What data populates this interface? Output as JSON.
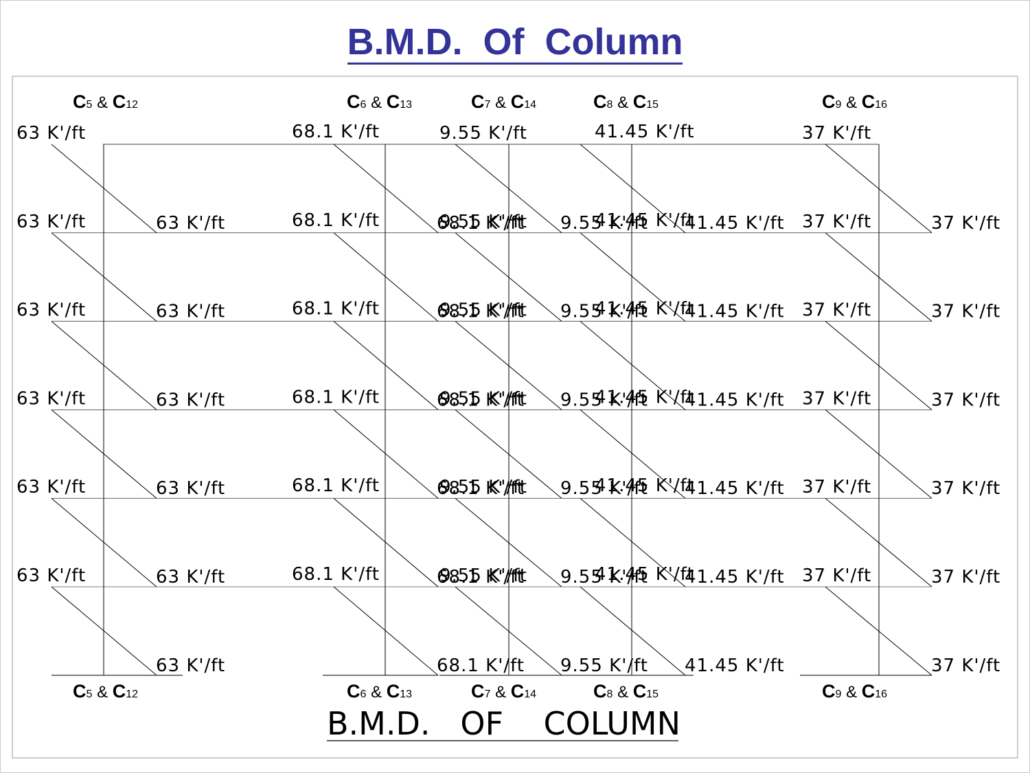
{
  "slide_title": "B.M.D.  Of  Column",
  "drawing_title": "B.M.D.   OF    COLUMN",
  "column_groups": [
    {
      "id": "c5",
      "c1": "C",
      "s1": "5",
      "amp": " & ",
      "c2": "C",
      "s2": "12",
      "moment": "63 K'/ft"
    },
    {
      "id": "c6",
      "c1": "C",
      "s1": "6",
      "amp": " & ",
      "c2": "C",
      "s2": "13",
      "moment": "68.1 K'/ft"
    },
    {
      "id": "c7",
      "c1": "C",
      "s1": "7",
      "amp": " & ",
      "c2": "C",
      "s2": "14",
      "moment": "9.55 K'/ft"
    },
    {
      "id": "c8",
      "c1": "C",
      "s1": "8",
      "amp": " & ",
      "c2": "C",
      "s2": "15",
      "moment": "41.45 K'/ft"
    },
    {
      "id": "c9",
      "c1": "C",
      "s1": "9",
      "amp": " & ",
      "c2": "C",
      "s2": "16",
      "moment": "37 K'/ft"
    }
  ],
  "storey_count": 6,
  "colors": {
    "title": "#333399",
    "lines": "#000000",
    "border": "#c8c8c8"
  }
}
